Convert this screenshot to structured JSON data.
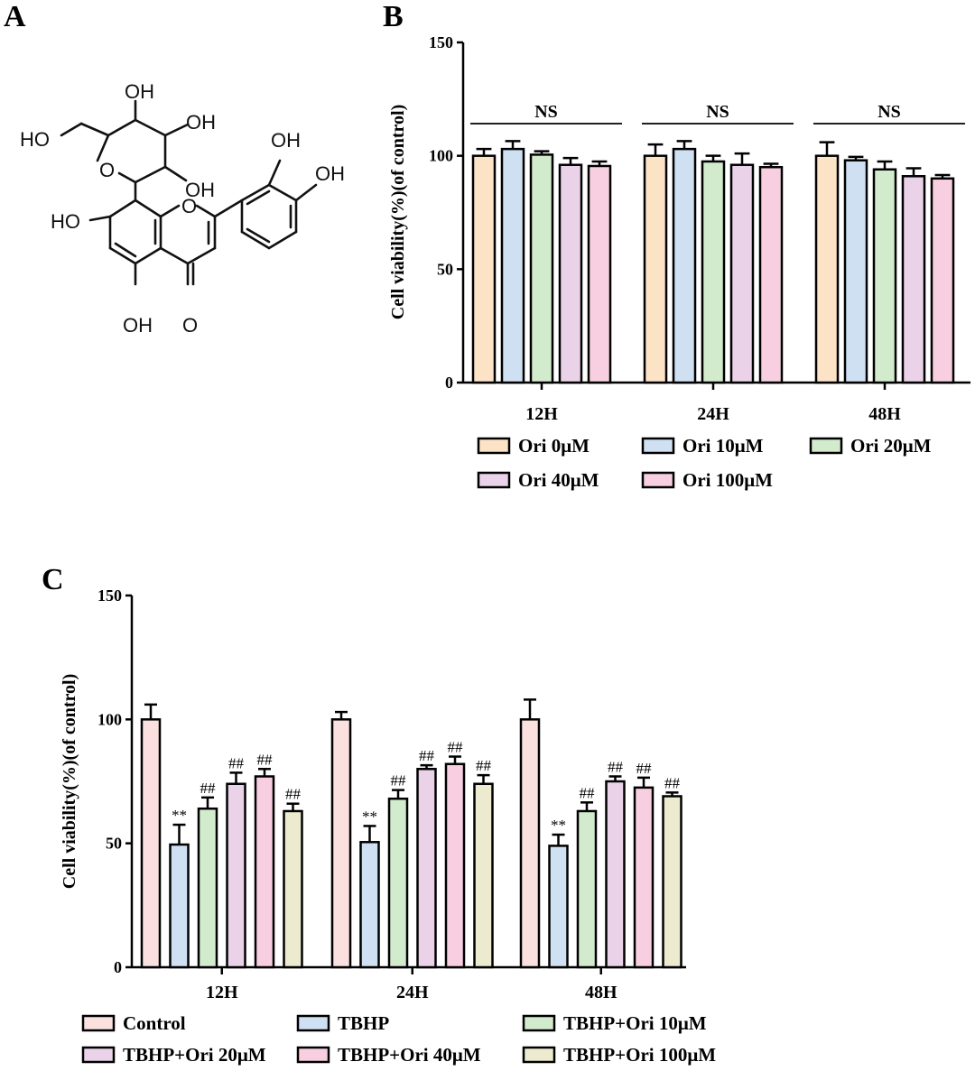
{
  "panels": {
    "a_letter": "A",
    "b_letter": "B",
    "c_letter": "C"
  },
  "molecule": {
    "labels": [
      "OH",
      "HO",
      "OH",
      "OH",
      "O",
      "OH",
      "OH",
      "HO",
      "O",
      "OH",
      "OH",
      "O"
    ]
  },
  "chart_data": [
    {
      "id": "B",
      "type": "bar",
      "title": "",
      "xlabel": "",
      "ylabel": "Cell viability(%)(of control)",
      "ylim": [
        0,
        150
      ],
      "yticks": [
        0,
        50,
        100,
        150
      ],
      "categories": [
        "12H",
        "24H",
        "48H"
      ],
      "series": [
        {
          "name": "Ori 0μM",
          "color": "#fce3c6",
          "values": [
            100,
            100,
            100
          ],
          "errors": [
            3,
            5,
            6
          ]
        },
        {
          "name": "Ori 10μM",
          "color": "#cfe0f3",
          "values": [
            103,
            103,
            98
          ],
          "errors": [
            3.5,
            3.5,
            1.5
          ]
        },
        {
          "name": "Ori 20μM",
          "color": "#d3ebcd",
          "values": [
            100.5,
            97.5,
            94
          ],
          "errors": [
            1.5,
            2.5,
            3.5
          ]
        },
        {
          "name": "Ori 40μM",
          "color": "#ead3e8",
          "values": [
            96,
            96,
            91
          ],
          "errors": [
            3,
            5,
            3.5
          ]
        },
        {
          "name": "Ori 100μM",
          "color": "#f8cfe0",
          "values": [
            95.5,
            95,
            90
          ],
          "errors": [
            2,
            1.5,
            1.5
          ]
        }
      ],
      "annotations": [
        {
          "category": "12H",
          "text": "NS"
        },
        {
          "category": "24H",
          "text": "NS"
        },
        {
          "category": "48H",
          "text": "NS"
        }
      ],
      "legend_position": "bottom"
    },
    {
      "id": "C",
      "type": "bar",
      "title": "",
      "xlabel": "",
      "ylabel": "Cell viability(%)(of control)",
      "ylim": [
        0,
        150
      ],
      "yticks": [
        0,
        50,
        100,
        150
      ],
      "categories": [
        "12H",
        "24H",
        "48H"
      ],
      "series": [
        {
          "name": "Control",
          "color": "#fbe0e0",
          "values": [
            100,
            100,
            100
          ],
          "errors": [
            6,
            3,
            8
          ],
          "marks": [
            "",
            "",
            ""
          ]
        },
        {
          "name": "TBHP",
          "color": "#cfe0f3",
          "values": [
            49.5,
            50.5,
            49
          ],
          "errors": [
            8,
            6.5,
            4.5
          ],
          "marks": [
            "**",
            "**",
            "**"
          ]
        },
        {
          "name": "TBHP+Ori 10μM",
          "color": "#d3ebcd",
          "values": [
            64,
            68,
            63
          ],
          "errors": [
            4.5,
            3.5,
            3.5
          ],
          "marks": [
            "##",
            "##",
            "##"
          ]
        },
        {
          "name": "TBHP+Ori 20μM",
          "color": "#ead3e8",
          "values": [
            74,
            80,
            75
          ],
          "errors": [
            4.5,
            1.5,
            2
          ],
          "marks": [
            "##",
            "##",
            "##"
          ]
        },
        {
          "name": "TBHP+Ori 40μM",
          "color": "#f8cfe0",
          "values": [
            77,
            82,
            72.5
          ],
          "errors": [
            3,
            3,
            4
          ],
          "marks": [
            "##",
            "##",
            "##"
          ]
        },
        {
          "name": "TBHP+Ori 100μM",
          "color": "#ecebd0",
          "values": [
            63,
            74,
            69
          ],
          "errors": [
            3,
            3.5,
            1.5
          ],
          "marks": [
            "##",
            "##",
            "##"
          ]
        }
      ],
      "legend_position": "bottom"
    }
  ]
}
